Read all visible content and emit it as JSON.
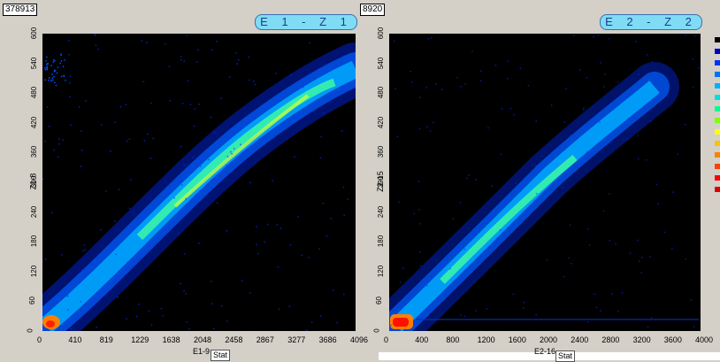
{
  "left_panel": {
    "count": "378913",
    "title": "E 1 - Z 1",
    "xlabel": "E1-9",
    "ylabel": "Z1-8",
    "stat_label": "Stat",
    "xticks": [
      "0",
      "410",
      "819",
      "1229",
      "1638",
      "2048",
      "2458",
      "2867",
      "3277",
      "3686",
      "4096"
    ],
    "yticks": [
      "0",
      "60",
      "120",
      "180",
      "240",
      "300",
      "360",
      "420",
      "480",
      "540",
      "600"
    ]
  },
  "right_panel": {
    "count": "8920",
    "title": "E 2 - Z 2",
    "xlabel": "E2-16",
    "ylabel": "Z2-15",
    "stat_label": "Stat",
    "xticks": [
      "0",
      "400",
      "800",
      "1200",
      "1600",
      "2000",
      "2400",
      "2800",
      "3200",
      "3600",
      "4000"
    ],
    "yticks": [
      "0",
      "60",
      "120",
      "180",
      "240",
      "300",
      "360",
      "420",
      "480",
      "540",
      "600"
    ]
  },
  "colors": {
    "background": "#d4d0c8",
    "plot_bg": "#000000",
    "title_bg": "#7fdcf4",
    "title_text": "#1c3c8c"
  },
  "legend_colors": [
    "#000000",
    "#0000c0",
    "#0030ff",
    "#0070ff",
    "#00b0ff",
    "#00e0e0",
    "#00ff90",
    "#80ff00",
    "#ffff00",
    "#ffc000",
    "#ff8000",
    "#ff4000",
    "#ff0000",
    "#e00000"
  ]
}
